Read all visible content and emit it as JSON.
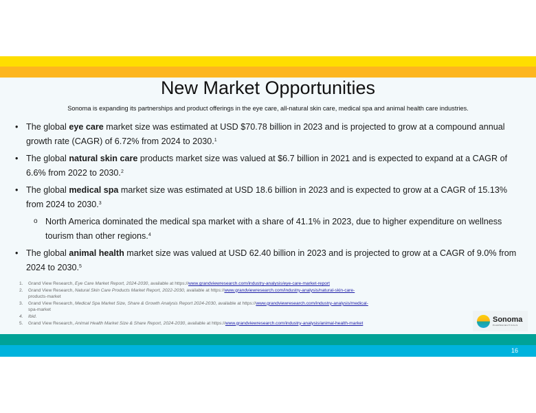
{
  "title": "New Market Opportunities",
  "subtitle": "Sonoma is expanding its partnerships and product offerings in the eye care, all-natural skin care, medical spa and animal health care industries.",
  "bullets": [
    {
      "pre": "The global ",
      "bold": "eye care",
      "post": " market size was estimated at USD $70.78 billion in 2023 and is projected to grow at a compound annual growth rate (CAGR) of 6.72% from 2024 to 2030.",
      "sup": "1"
    },
    {
      "pre": "The global ",
      "bold": "natural skin care",
      "post": " products market size was valued at $6.7 billion in 2021 and is expected to expand at a CAGR of 6.6% from 2022 to 2030.",
      "sup": "2"
    },
    {
      "pre": "The global ",
      "bold": "medical spa",
      "post": " market size was estimated at USD 18.6 billion in 2023 and is expected to grow at a CAGR of 15.13% from 2024 to 2030.",
      "sup": "3"
    },
    {
      "pre": "The global ",
      "bold": "animal health",
      "post": " market size was valued at USD 62.40 billion in 2023 and is projected to grow at a CAGR of 9.0% from 2024 to 2030.",
      "sup": "5"
    }
  ],
  "sub_bullet": {
    "text": "North America dominated the medical spa market with a share of 41.1% in 2023, due to higher expenditure on wellness tourism than other regions.",
    "sup": "4"
  },
  "footnotes": [
    {
      "num": "1.",
      "pre": "Grand View Research, ",
      "italic": "Eye Care Market Report, 2024-2030",
      "mid": ", available at https://",
      "link": "www.grandviewresearch.com/industry-analysis/eye-care-market-report",
      "cont": ""
    },
    {
      "num": "2.",
      "pre": "Grand View Research, ",
      "italic": "Natural Skin Care Products Market Report, 2022-2030",
      "mid": ", available at https://",
      "link": "www.grandviewresearch.com/industry-analysis/natural-skin-care-",
      "cont": "products-market"
    },
    {
      "num": "3.",
      "pre": "Grand View Research, ",
      "italic": "Medical Spa Market Size, Share & Growth Analysis Report 2024-2030",
      "mid": ", available at https://",
      "link": "www.grandviewresearch.com/industry-analysis/medical-",
      "cont": "spa-market"
    },
    {
      "num": "4.",
      "pre": "",
      "italic": "Ibid.",
      "mid": "",
      "link": "",
      "cont": ""
    },
    {
      "num": "5.",
      "pre": "Grand View Research, ",
      "italic": "Animal Health Market Size & Share Report, 2024-2030",
      "mid": ", available at https://",
      "link": "www.grandviewresearch.com/industry-analysis/animal-health-market",
      "cont": ""
    }
  ],
  "logo": {
    "name": "Sonoma",
    "tagline": "PHARMACEUTICALS"
  },
  "page_number": "16",
  "colors": {
    "yellow": "#fede00",
    "orange": "#fdb61e",
    "teal": "#00a297",
    "cyan": "#00b3dd",
    "link": "#1a1aa6"
  }
}
